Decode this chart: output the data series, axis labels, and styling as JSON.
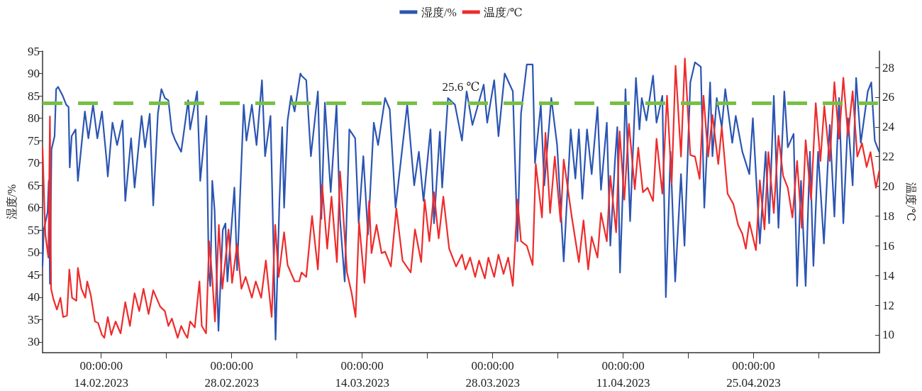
{
  "chart_data": {
    "type": "line",
    "ylabel": "湿度/%",
    "y2label": "温度/℃",
    "xlim": [
      "2023-02-07T17:00",
      "2023-05-08T12:00"
    ],
    "xticks": [
      {
        "value": "2023-02-14",
        "label": "00:00:00\n14.02.2023"
      },
      {
        "value": "2023-02-21",
        "label": null
      },
      {
        "value": "2023-02-28",
        "label": "00:00:00\n28.02.2023"
      },
      {
        "value": "2023-03-07",
        "label": null
      },
      {
        "value": "2023-03-14",
        "label": "00:00:00\n14.03.2023"
      },
      {
        "value": "2023-03-21",
        "label": null
      },
      {
        "value": "2023-03-28",
        "label": "00:00:00\n28.03.2023"
      },
      {
        "value": "2023-04-04",
        "label": null
      },
      {
        "value": "2023-04-11",
        "label": "00:00:00\n11.04.2023"
      },
      {
        "value": "2023-04-18",
        "label": null
      },
      {
        "value": "2023-04-25",
        "label": "00:00:00\n25.04.2023"
      },
      {
        "value": "2023-05-02",
        "label": null
      }
    ],
    "ylim": [
      27.6,
      95
    ],
    "yticks": [
      30,
      35,
      40,
      45,
      50,
      55,
      60,
      65,
      70,
      75,
      80,
      85,
      90,
      95
    ],
    "y2lim": [
      8.8,
      29.1
    ],
    "y2ticks": [
      10,
      12,
      14,
      16,
      18,
      20,
      22,
      24,
      26,
      28
    ],
    "grid": false,
    "legend": "top",
    "marker": "none",
    "line_style": "solid",
    "ref_lines": [
      {
        "axis": "y2",
        "value": 25.6,
        "label": "25.6 ℃",
        "color": "#76c043",
        "line_style": "dashed"
      }
    ],
    "series": [
      {
        "name": "湿度/%",
        "color": "#2b55b3",
        "x": [
          "2023-02-07T17:00",
          "2023-02-07T20:00",
          "2023-02-08T06:00",
          "2023-02-08T09:00",
          "2023-02-08T12:00",
          "2023-02-08T16:00",
          "2023-02-09T00:00",
          "2023-02-09T04:00",
          "2023-02-09T09:00",
          "2023-02-09T21:00",
          "2023-02-10T06:00",
          "2023-02-10T12:00",
          "2023-02-10T15:00",
          "2023-02-10T20:00",
          "2023-02-11T06:00",
          "2023-02-11T12:00",
          "2023-02-12T06:00",
          "2023-02-12T15:00",
          "2023-02-13T03:00",
          "2023-02-13T14:00",
          "2023-02-14T02:00",
          "2023-02-14T14:00",
          "2023-02-14T17:00",
          "2023-02-15T05:00",
          "2023-02-15T17:00",
          "2023-02-16T07:00",
          "2023-02-16T14:00",
          "2023-02-17T05:00",
          "2023-02-17T14:00",
          "2023-02-18T08:00",
          "2023-02-18T17:00",
          "2023-02-19T05:00",
          "2023-02-19T14:00",
          "2023-02-20T02:00",
          "2023-02-20T11:00",
          "2023-02-20T20:00",
          "2023-02-21T05:00",
          "2023-02-21T14:00",
          "2023-02-21T23:00",
          "2023-02-22T14:00",
          "2023-02-23T08:00",
          "2023-02-23T13:00",
          "2023-02-24T07:00",
          "2023-02-24T15:00",
          "2023-02-25T07:00",
          "2023-02-25T13:00",
          "2023-02-25T17:00",
          "2023-02-25T22:00",
          "2023-02-26T04:00",
          "2023-02-26T14:00",
          "2023-02-27T01:00",
          "2023-02-27T08:00",
          "2023-02-27T13:00",
          "2023-02-28T07:00",
          "2023-02-28T14:00",
          "2023-03-01T07:00",
          "2023-03-01T14:00",
          "2023-03-02T04:00",
          "2023-03-02T16:00",
          "2023-03-03T06:00",
          "2023-03-03T14:00",
          "2023-03-04T04:00",
          "2023-03-04T17:00",
          "2023-03-05T03:00",
          "2023-03-05T10:00",
          "2023-03-05T15:00",
          "2023-03-06T00:00",
          "2023-03-06T09:00",
          "2023-03-06T18:00",
          "2023-03-07T09:00",
          "2023-03-07T12:00",
          "2023-03-08T00:00",
          "2023-03-08T12:00",
          "2023-03-09T06:00",
          "2023-03-09T15:00",
          "2023-03-10T00:00",
          "2023-03-10T15:00",
          "2023-03-11T06:00",
          "2023-03-11T15:00",
          "2023-03-12T03:00",
          "2023-03-12T15:00",
          "2023-03-13T06:00",
          "2023-03-13T15:00",
          "2023-03-14T03:00",
          "2023-03-14T15:00",
          "2023-03-15T06:00",
          "2023-03-15T17:00",
          "2023-03-16T11:00",
          "2023-03-16T23:00",
          "2023-03-17T14:00",
          "2023-03-18T20:00",
          "2023-03-19T14:00",
          "2023-03-20T02:00",
          "2023-03-20T14:00",
          "2023-03-21T08:00",
          "2023-03-21T17:00",
          "2023-03-22T08:00",
          "2023-03-22T14:00",
          "2023-03-23T05:00",
          "2023-03-23T23:00",
          "2023-03-24T17:00",
          "2023-03-25T05:00",
          "2023-03-25T20:00",
          "2023-03-27T01:00",
          "2023-03-27T10:00",
          "2023-03-28T04:00",
          "2023-03-28T15:00",
          "2023-03-29T07:00",
          "2023-03-30T04:00",
          "2023-03-30T16:00",
          "2023-03-31T01:00",
          "2023-03-31T16:00",
          "2023-04-01T07:00",
          "2023-04-01T13:00",
          "2023-04-02T04:00",
          "2023-04-02T13:00",
          "2023-04-03T07:00",
          "2023-04-03T22:00",
          "2023-04-04T15:00",
          "2023-04-05T09:00",
          "2023-04-05T21:00",
          "2023-04-06T06:00",
          "2023-04-06T15:00",
          "2023-04-07T03:00",
          "2023-04-07T15:00",
          "2023-04-08T06:00",
          "2023-04-08T15:00",
          "2023-04-09T06:00",
          "2023-04-09T15:00",
          "2023-04-10T03:00",
          "2023-04-10T09:00",
          "2023-04-10T16:00",
          "2023-04-11T00:00",
          "2023-04-11T06:00",
          "2023-04-11T18:00",
          "2023-04-12T09:00",
          "2023-04-12T18:00",
          "2023-04-13T00:00",
          "2023-04-13T12:00",
          "2023-04-14T05:00",
          "2023-04-14T14:00",
          "2023-04-15T05:00",
          "2023-04-15T14:00",
          "2023-04-16T02:00",
          "2023-04-16T14:00",
          "2023-04-17T05:00",
          "2023-04-17T14:00",
          "2023-04-18T05:00",
          "2023-04-18T17:00",
          "2023-04-19T08:00",
          "2023-04-19T17:00",
          "2023-04-20T08:00",
          "2023-04-20T14:00",
          "2023-04-21T01:00",
          "2023-04-21T14:00",
          "2023-04-21T23:00",
          "2023-04-22T17:00",
          "2023-04-23T02:00",
          "2023-04-23T19:00",
          "2023-04-24T13:00",
          "2023-04-24T22:00",
          "2023-04-25T16:00",
          "2023-04-26T07:00",
          "2023-04-26T16:00",
          "2023-04-27T04:00",
          "2023-04-27T16:00",
          "2023-04-28T07:00",
          "2023-04-28T16:00",
          "2023-04-29T07:00",
          "2023-04-29T16:00",
          "2023-04-30T02:00",
          "2023-04-30T14:00",
          "2023-05-01T01:00",
          "2023-05-01T10:00",
          "2023-05-01T22:00",
          "2023-05-02T13:00",
          "2023-05-03T04:00",
          "2023-05-03T16:00",
          "2023-05-04T04:00",
          "2023-05-04T15:00",
          "2023-05-05T03:00",
          "2023-05-05T15:00",
          "2023-05-06T00:00",
          "2023-05-06T12:00",
          "2023-05-07T06:00",
          "2023-05-07T15:00",
          "2023-05-08T00:00",
          "2023-05-08T11:00"
        ],
        "values": [
          47,
          55,
          59,
          66,
          43,
          73,
          76,
          86.5,
          87,
          85,
          83,
          82.5,
          69,
          76,
          77.5,
          66,
          81.5,
          75.5,
          83,
          75.5,
          81.5,
          70.5,
          67,
          79,
          74,
          79.5,
          61.5,
          75.5,
          64.5,
          80.5,
          73.5,
          81,
          60.5,
          81,
          86.5,
          84.5,
          84,
          77,
          75,
          72.5,
          84,
          77.5,
          86,
          66,
          80.5,
          45.5,
          42.5,
          66,
          59.5,
          32.5,
          55,
          56.5,
          43.5,
          64.5,
          46,
          83,
          75,
          83,
          74,
          88.5,
          71.5,
          80.5,
          30.5,
          61.5,
          78,
          60,
          79.5,
          85,
          81.5,
          90,
          89.5,
          88.5,
          71.5,
          86,
          57.5,
          83.5,
          63.5,
          83,
          57.5,
          43.5,
          77.5,
          75.5,
          56.5,
          71.5,
          54,
          79,
          74,
          84.5,
          82,
          60,
          83,
          65,
          72.5,
          61.5,
          77.5,
          56.5,
          77,
          64.5,
          84.5,
          83,
          75,
          86,
          78.5,
          87.5,
          79,
          88.5,
          76,
          90,
          86,
          52.5,
          81,
          92,
          92,
          70,
          83,
          65,
          84.5,
          74,
          48,
          77.5,
          66.5,
          77.5,
          62,
          77.5,
          67.5,
          82.5,
          64,
          79,
          51.5,
          70.5,
          78,
          45.5,
          66,
          86.5,
          57,
          89,
          77.5,
          84.5,
          79.5,
          89.5,
          79,
          85,
          40,
          72.5,
          43.5,
          67.5,
          51.5,
          88,
          92.5,
          91.5,
          60,
          88,
          71.5,
          84.5,
          78,
          86.5,
          74.5,
          80.5,
          72.5,
          67.5,
          80,
          52,
          72.5,
          56.5,
          85,
          55.5,
          86,
          73.5,
          76.5,
          42.5,
          66,
          42.5,
          72.5,
          47,
          72.5,
          52,
          78.5,
          58,
          84.5,
          56.5,
          80,
          65,
          89,
          74.5,
          86,
          88,
          75,
          72.5
        ]
      },
      {
        "name": "温度/℃",
        "color": "#ef2b2b",
        "axis": "y2",
        "x": [
          "2023-02-07T17:00",
          "2023-02-08T00:00",
          "2023-02-08T08:00",
          "2023-02-08T12:00",
          "2023-02-08T15:00",
          "2023-02-08T21:00",
          "2023-02-09T06:00",
          "2023-02-09T15:00",
          "2023-02-09T22:00",
          "2023-02-10T08:00",
          "2023-02-10T14:00",
          "2023-02-10T21:00",
          "2023-02-11T08:00",
          "2023-02-11T12:00",
          "2023-02-11T21:00",
          "2023-02-12T07:00",
          "2023-02-12T12:00",
          "2023-02-12T21:00",
          "2023-02-13T08:00",
          "2023-02-13T16:00",
          "2023-02-14T02:00",
          "2023-02-14T08:00",
          "2023-02-14T17:00",
          "2023-02-15T02:00",
          "2023-02-15T13:00",
          "2023-02-16T02:00",
          "2023-02-16T14:00",
          "2023-02-17T02:00",
          "2023-02-17T14:00",
          "2023-02-18T02:00",
          "2023-02-18T13:00",
          "2023-02-19T02:00",
          "2023-02-19T14:00",
          "2023-02-20T08:00",
          "2023-02-20T20:00",
          "2023-02-21T05:00",
          "2023-02-21T14:00",
          "2023-02-22T05:00",
          "2023-02-22T14:00",
          "2023-02-22T23:00",
          "2023-02-23T06:00",
          "2023-02-23T13:00",
          "2023-02-24T01:00",
          "2023-02-24T13:00",
          "2023-02-24T19:00",
          "2023-02-25T06:00",
          "2023-02-25T14:00",
          "2023-02-25T22:00",
          "2023-02-26T05:00",
          "2023-02-26T15:00",
          "2023-02-27T00:00",
          "2023-02-27T16:00",
          "2023-02-28T01:00",
          "2023-02-28T14:00",
          "2023-03-01T01:00",
          "2023-03-01T12:00",
          "2023-03-02T04:00",
          "2023-03-02T14:00",
          "2023-03-03T04:00",
          "2023-03-03T16:00",
          "2023-03-04T07:00",
          "2023-03-04T16:00",
          "2023-03-05T01:00",
          "2023-03-05T15:00",
          "2023-03-06T00:00",
          "2023-03-06T18:00",
          "2023-03-07T06:00",
          "2023-03-07T12:00",
          "2023-03-08T00:00",
          "2023-03-08T15:00",
          "2023-03-09T06:00",
          "2023-03-09T17:00",
          "2023-03-10T06:00",
          "2023-03-10T17:00",
          "2023-03-11T07:00",
          "2023-03-11T15:00",
          "2023-03-11T23:00",
          "2023-03-12T09:00",
          "2023-03-12T21:00",
          "2023-03-13T07:00",
          "2023-03-13T16:00",
          "2023-03-14T06:00",
          "2023-03-14T18:00",
          "2023-03-15T00:00",
          "2023-03-15T13:00",
          "2023-03-16T02:00",
          "2023-03-16T11:00",
          "2023-03-17T02:00",
          "2023-03-17T16:00",
          "2023-03-18T08:00",
          "2023-03-19T05:00",
          "2023-03-19T16:00",
          "2023-03-20T08:00",
          "2023-03-20T17:00",
          "2023-03-21T05:00",
          "2023-03-21T17:00",
          "2023-03-22T05:00",
          "2023-03-22T17:00",
          "2023-03-23T08:00",
          "2023-03-24T02:00",
          "2023-03-24T17:00",
          "2023-03-25T02:00",
          "2023-03-25T14:00",
          "2023-03-26T03:00",
          "2023-03-26T13:00",
          "2023-03-27T04:00",
          "2023-03-27T13:00",
          "2023-03-28T04:00",
          "2023-03-28T15:00",
          "2023-03-29T04:00",
          "2023-03-29T16:00",
          "2023-03-30T04:00",
          "2023-03-30T16:00",
          "2023-03-31T01:00",
          "2023-03-31T16:00",
          "2023-04-01T07:00",
          "2023-04-01T15:00",
          "2023-04-02T07:00",
          "2023-04-02T16:00",
          "2023-04-03T04:00",
          "2023-04-03T16:00",
          "2023-04-04T07:00",
          "2023-04-04T15:00",
          "2023-04-05T12:00",
          "2023-04-06T06:00",
          "2023-04-06T18:00",
          "2023-04-07T06:00",
          "2023-04-07T15:00",
          "2023-04-08T06:00",
          "2023-04-08T15:00",
          "2023-04-09T06:00",
          "2023-04-09T15:00",
          "2023-04-10T06:00",
          "2023-04-10T15:00",
          "2023-04-11T03:00",
          "2023-04-11T15:00",
          "2023-04-12T06:00",
          "2023-04-12T15:00",
          "2023-04-13T03:00",
          "2023-04-13T15:00",
          "2023-04-14T05:00",
          "2023-04-14T14:00",
          "2023-04-15T05:00",
          "2023-04-15T17:00",
          "2023-04-16T05:00",
          "2023-04-16T15:00",
          "2023-04-17T05:00",
          "2023-04-17T15:00",
          "2023-04-18T05:00",
          "2023-04-18T17:00",
          "2023-04-19T05:00",
          "2023-04-19T15:00",
          "2023-04-20T03:00",
          "2023-04-20T14:00",
          "2023-04-21T05:00",
          "2023-04-21T14:00",
          "2023-04-22T05:00",
          "2023-04-22T20:00",
          "2023-04-23T08:00",
          "2023-04-23T19:00",
          "2023-04-24T04:00",
          "2023-04-24T13:00",
          "2023-04-25T06:00",
          "2023-04-25T16:00",
          "2023-04-26T04:00",
          "2023-04-26T14:00",
          "2023-04-27T04:00",
          "2023-04-27T16:00",
          "2023-04-28T04:00",
          "2023-04-28T16:00",
          "2023-04-29T04:00",
          "2023-04-29T16:00",
          "2023-04-30T04:00",
          "2023-04-30T14:00",
          "2023-05-01T04:00",
          "2023-05-01T16:00",
          "2023-05-02T04:00",
          "2023-05-02T14:00",
          "2023-05-03T04:00",
          "2023-05-03T16:00",
          "2023-05-04T04:00",
          "2023-05-04T15:00",
          "2023-05-05T03:00",
          "2023-05-05T15:00",
          "2023-05-06T03:00",
          "2023-05-06T15:00",
          "2023-05-07T03:00",
          "2023-05-07T13:00",
          "2023-05-08T03:00",
          "2023-05-08T11:00"
        ],
        "values": [
          22.6,
          16.8,
          15.2,
          24.7,
          13.1,
          12.4,
          11.7,
          12.5,
          11.2,
          11.3,
          14.4,
          12.5,
          12.3,
          14.5,
          13.1,
          12.5,
          13.6,
          12.7,
          10.9,
          10.8,
          10,
          9.8,
          11.2,
          10,
          10.9,
          10.1,
          12.2,
          10.6,
          12.8,
          11.6,
          13.1,
          11.4,
          13,
          11.9,
          11.6,
          10.6,
          11.1,
          9.8,
          10.6,
          10.1,
          9.8,
          10.9,
          10.5,
          13.6,
          10.6,
          10.1,
          16.3,
          13.8,
          10.9,
          17.4,
          13.1,
          17.1,
          13.5,
          16.1,
          13.1,
          13.9,
          12.5,
          13.6,
          12.5,
          15,
          11.2,
          17.4,
          13.9,
          16.9,
          14.7,
          13.6,
          13.6,
          14.2,
          13.9,
          18,
          14.4,
          20.1,
          15.8,
          19.3,
          14.9,
          21,
          18.2,
          14.2,
          12.8,
          11.2,
          17.6,
          13.5,
          19,
          15.5,
          17.4,
          15.5,
          15.6,
          14.6,
          18.5,
          15,
          14.2,
          17.1,
          14.9,
          19.1,
          16.3,
          19.6,
          16.5,
          19.3,
          15.8,
          14.6,
          15.4,
          14.4,
          15.2,
          13.9,
          15,
          13.8,
          15.2,
          13.9,
          15.4,
          14.1,
          15.2,
          13.3,
          19.1,
          16.3,
          16,
          14.7,
          21.5,
          17.9,
          23.6,
          18.2,
          22,
          17.6,
          21.8,
          17.9,
          14.9,
          17.7,
          14.4,
          16.6,
          15.2,
          18.2,
          16.3,
          20.7,
          16.9,
          23.7,
          19.1,
          24.2,
          19.8,
          22.6,
          19.6,
          19.9,
          19,
          23.2,
          19.5,
          26.1,
          20.2,
          28.1,
          22,
          28.6,
          22.1,
          22,
          20.5,
          26.1,
          22,
          24.8,
          21.5,
          24,
          19.5,
          18.8,
          17.4,
          16.8,
          15.8,
          17.6,
          15.7,
          20.4,
          17.1,
          22.3,
          18.2,
          23.4,
          20.7,
          19.9,
          17.9,
          21.7,
          17.2,
          23.1,
          19.1,
          25.6,
          21.7,
          25.4,
          21.7,
          27,
          23.2,
          27.3,
          23.4,
          26.4,
          22,
          22.9,
          21.3,
          22.3,
          19.9,
          21
        ]
      }
    ]
  }
}
